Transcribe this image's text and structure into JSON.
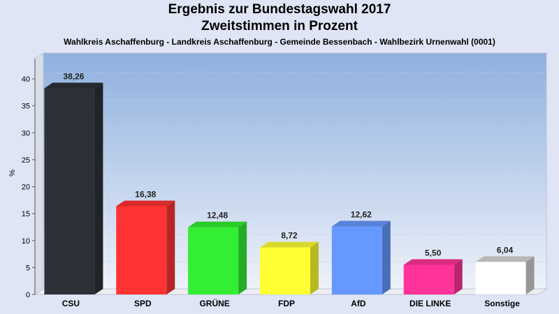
{
  "chart_data": {
    "type": "bar",
    "title": "Ergebnis zur Bundestagswahl 2017",
    "subtitle": "Zweitstimmen in Prozent",
    "subsubtitle": "Wahlkreis Aschaffenburg - Landkreis Aschaffenburg - Gemeinde Bessenbach - Wahlbezirk Urnenwahl (0001)",
    "ylabel": "%",
    "ylim": [
      0,
      40
    ],
    "yticks": [
      0,
      5,
      10,
      15,
      20,
      25,
      30,
      35,
      40
    ],
    "grid": true,
    "categories": [
      "CSU",
      "SPD",
      "GRÜNE",
      "FDP",
      "AfD",
      "DIE LINKE",
      "Sonstige"
    ],
    "values": [
      38.26,
      16.38,
      12.48,
      8.72,
      12.62,
      5.5,
      6.04
    ],
    "value_labels": [
      "38,26",
      "16,38",
      "12,48",
      "8,72",
      "12,62",
      "5,50",
      "6,04"
    ],
    "colors": [
      "#2d3036",
      "#ff3333",
      "#33ee33",
      "#ffff33",
      "#6699ff",
      "#ff3399",
      "#ffffff"
    ]
  }
}
